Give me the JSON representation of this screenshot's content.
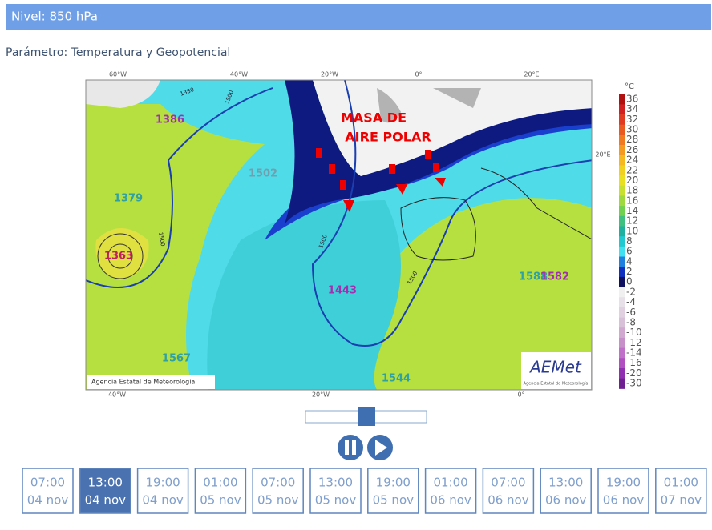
{
  "header": {
    "title": "Nivel: 850 hPa"
  },
  "parameter": "Parámetro: Temperatura y Geopotencial",
  "map": {
    "lon_top": [
      "60°W",
      "40°W",
      "20°W",
      "0°",
      "20°E"
    ],
    "lon_bottom": [
      "40°W",
      "20°W",
      "0°"
    ],
    "lat_right": [
      "20°E"
    ],
    "annotation": [
      "MASA DE",
      "AIRE POLAR"
    ],
    "values": [
      "1386",
      "1363",
      "1379",
      "1502",
      "1443",
      "1588",
      "1582",
      "1567",
      "1544"
    ],
    "contour_labels": [
      "1380",
      "1500",
      "1500",
      "1500",
      "1500"
    ],
    "credit": "Agencia Estatal de Meteorología",
    "logo": "AEMet",
    "logo_sub": "Agencia Estatal de Meteorología"
  },
  "colorbar": {
    "unit": "°C",
    "ticks": [
      36,
      34,
      32,
      30,
      28,
      26,
      24,
      22,
      20,
      18,
      16,
      14,
      12,
      10,
      8,
      6,
      4,
      2,
      0,
      -2,
      -4,
      -6,
      -8,
      -10,
      -12,
      -14,
      -16,
      -20,
      -30
    ],
    "colors": [
      "#b01010",
      "#d02020",
      "#e03a20",
      "#e85a20",
      "#f07a20",
      "#f59a20",
      "#f5b820",
      "#f0d020",
      "#e8e020",
      "#c8e030",
      "#a0d840",
      "#70d050",
      "#40c080",
      "#20b0a0",
      "#20c8d0",
      "#40e0f0",
      "#2080e0",
      "#1030c0",
      "#101060",
      "#f0f0f0",
      "#e8e0e8",
      "#e0d0e0",
      "#d8c0d8",
      "#d0a8d0",
      "#c890c8",
      "#c070c8",
      "#b050c0",
      "#9030b0",
      "#702090"
    ]
  },
  "times": [
    {
      "hour": "07:00",
      "day": "04 nov"
    },
    {
      "hour": "13:00",
      "day": "04 nov"
    },
    {
      "hour": "19:00",
      "day": "04 nov"
    },
    {
      "hour": "01:00",
      "day": "05 nov"
    },
    {
      "hour": "07:00",
      "day": "05 nov"
    },
    {
      "hour": "13:00",
      "day": "05 nov"
    },
    {
      "hour": "19:00",
      "day": "05 nov"
    },
    {
      "hour": "01:00",
      "day": "06 nov"
    },
    {
      "hour": "07:00",
      "day": "06 nov"
    },
    {
      "hour": "13:00",
      "day": "06 nov"
    },
    {
      "hour": "19:00",
      "day": "06 nov"
    },
    {
      "hour": "01:00",
      "day": "07 nov"
    }
  ],
  "active_time": 1
}
